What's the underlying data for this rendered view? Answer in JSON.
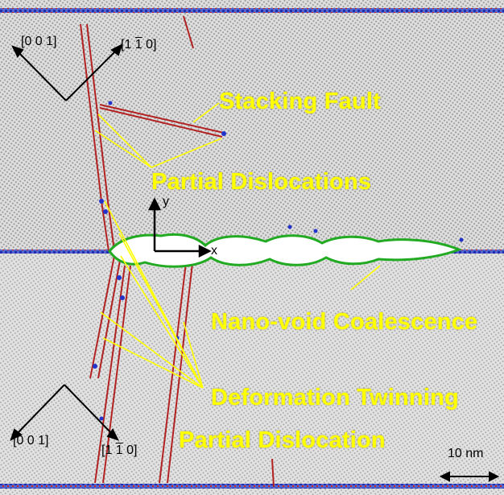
{
  "labels": {
    "stacking_fault": "Stacking Fault",
    "partial_dislocations": "Partial Dislocations",
    "nano_void_coalescence": "Nano-void Coalescence",
    "deformation_twinning": "Deformation Twinning",
    "partial_dislocation": "Partial Dislocation"
  },
  "orientation_top": {
    "left_dir": "[0 0 1]",
    "right_dir_prefix": "[1 ",
    "right_dir_bar": "1",
    "right_dir_suffix": " 0]"
  },
  "orientation_bottom": {
    "left_dir": "[0 0 1]",
    "right_dir_prefix": "[1 ",
    "right_dir_bar": "1",
    "right_dir_suffix": " 0]"
  },
  "axes": {
    "x": "x",
    "y": "y"
  },
  "scale_bar": {
    "label": "10 nm"
  },
  "colors": {
    "label": "#ffff00",
    "dislocation": "#b22222",
    "boundary_atoms": "#2233cc",
    "void_edge": "#22aa22",
    "void_fill": "#ffffff",
    "lattice": "#9a9a9a"
  }
}
